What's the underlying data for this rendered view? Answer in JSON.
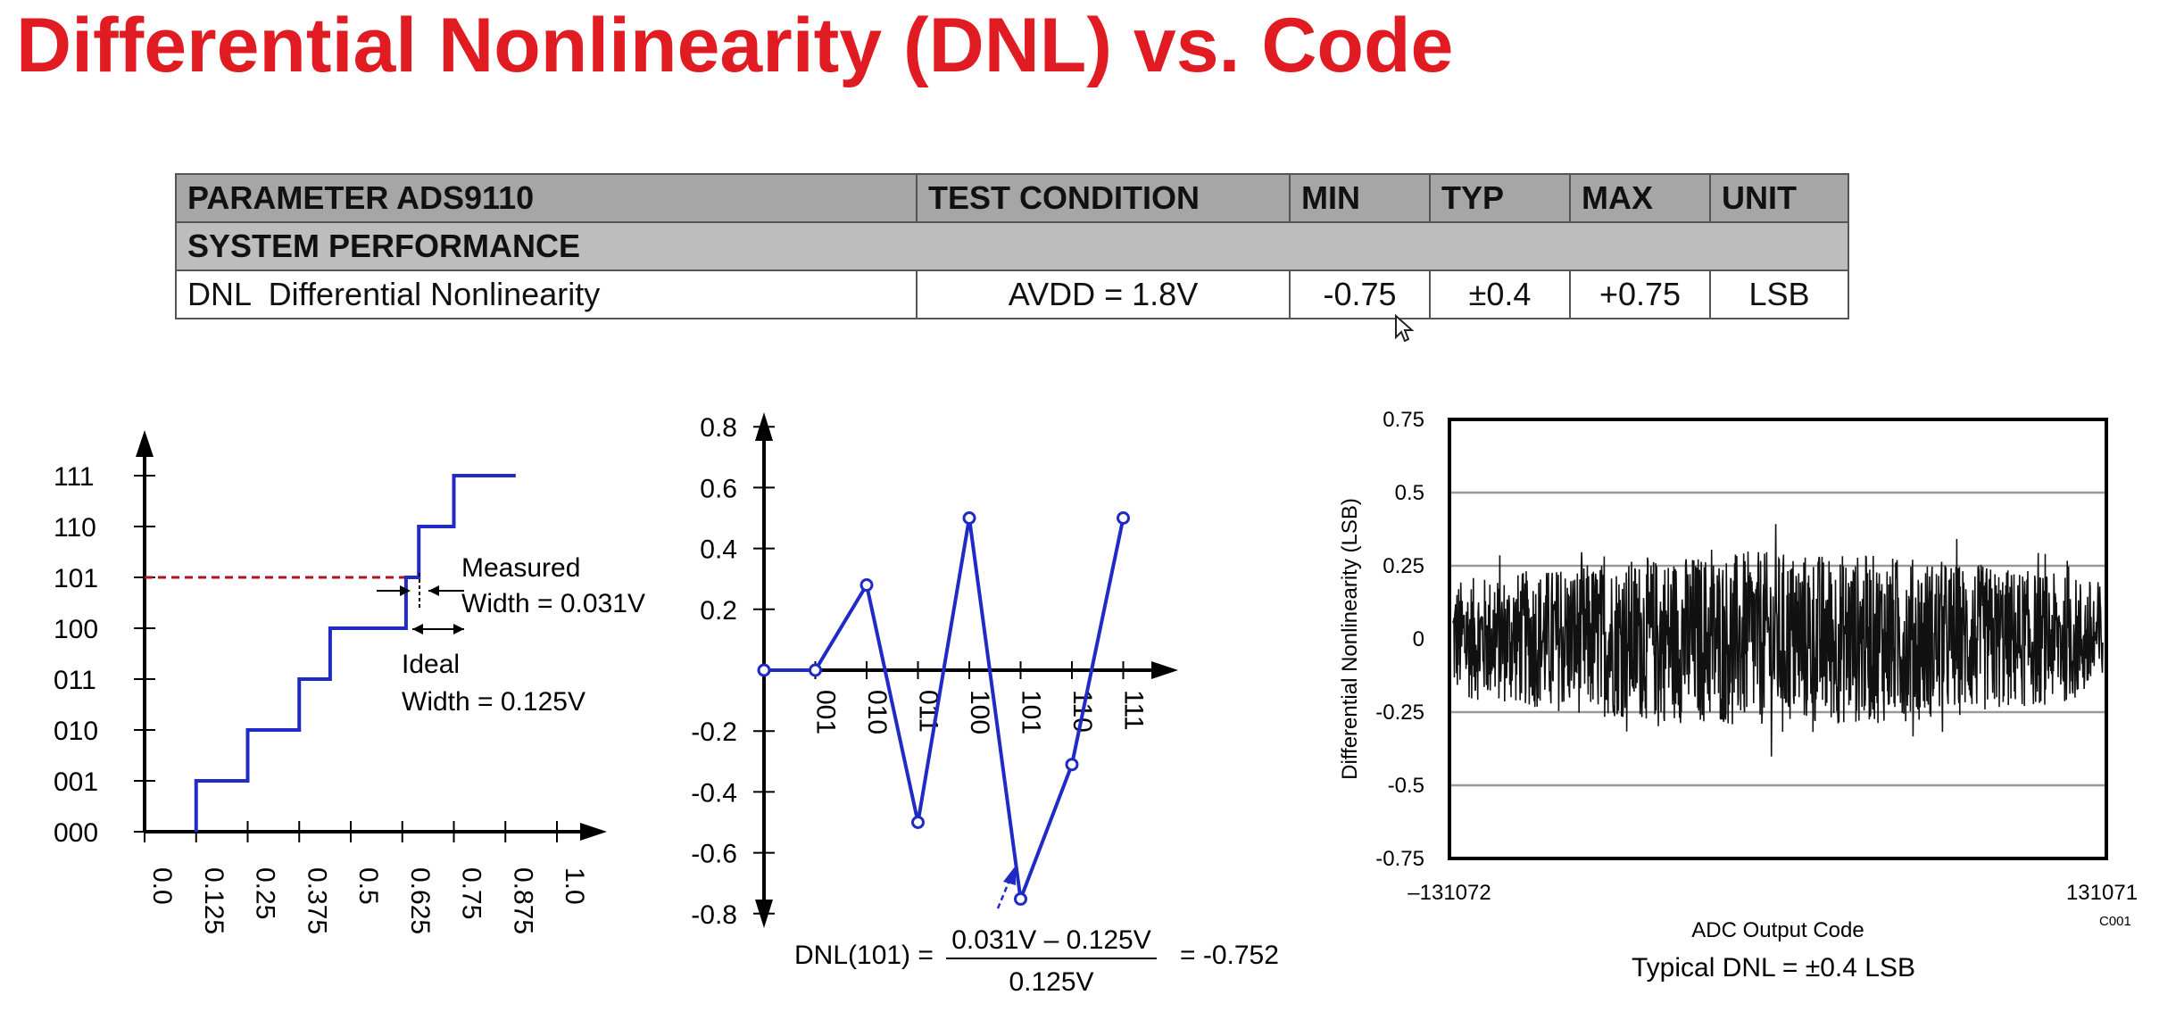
{
  "title": "Differential Nonlinearity (DNL) vs. Code",
  "table": {
    "headers": [
      "PARAMETER ADS9110",
      "TEST CONDITION",
      "MIN",
      "TYP",
      "MAX",
      "UNIT"
    ],
    "section": "SYSTEM PERFORMANCE",
    "row": {
      "parameter": "DNL  Differential Nonlinearity",
      "condition": "AVDD = 1.8V",
      "min": "-0.75",
      "typ": "±0.4",
      "max": "+0.75",
      "unit": "LSB"
    }
  },
  "colors": {
    "title": "#e01b22",
    "series": "#1f2bc4",
    "ref_line": "#b0141a",
    "noise": "#111111"
  },
  "chart_data": [
    {
      "type": "line",
      "title": "",
      "xlabel": "",
      "ylabel": "",
      "x_ticks": [
        "0.0",
        "0.125",
        "0.25",
        "0.375",
        "0.5",
        "0.625",
        "0.75",
        "0.875",
        "1.0"
      ],
      "y_ticks": [
        "000",
        "001",
        "010",
        "011",
        "100",
        "101",
        "110",
        "111"
      ],
      "xlim": [
        0,
        1.0
      ],
      "ylim": [
        0,
        7
      ],
      "series": [
        {
          "x": [
            0.125,
            0.125,
            0.25,
            0.25,
            0.375,
            0.375,
            0.45,
            0.45,
            0.634,
            0.634,
            0.665,
            0.665,
            0.75,
            0.75,
            0.9
          ],
          "y": [
            0,
            1,
            1,
            2,
            2,
            3,
            3,
            4,
            4,
            5,
            5,
            6,
            6,
            7,
            7
          ]
        }
      ],
      "reference_line": {
        "y": 5,
        "x_end": 0.634
      },
      "annotations": {
        "measured_line1": "Measured",
        "measured_line2": "Width = 0.031V",
        "ideal_line1": "Ideal",
        "ideal_line2": "Width = 0.125V"
      }
    },
    {
      "type": "line",
      "title": "",
      "xlabel": "",
      "ylabel": "",
      "y_ticks": [
        "0.8",
        "0.6",
        "0.4",
        "0.2",
        "-0.2",
        "-0.4",
        "-0.6",
        "-0.8"
      ],
      "x_ticks": [
        "001",
        "010",
        "011",
        "100",
        "101",
        "110",
        "111"
      ],
      "ylim": [
        -0.9,
        0.9
      ],
      "series": [
        {
          "x": [
            0,
            1,
            2,
            3,
            4,
            5,
            6,
            7
          ],
          "y": [
            0,
            0,
            0.28,
            -0.5,
            0.5,
            -0.752,
            -0.31,
            0.5
          ]
        }
      ],
      "formula": {
        "left": "DNL(101) =",
        "numerator": "0.031V – 0.125V",
        "denominator": "0.125V",
        "result": "= -0.752"
      }
    },
    {
      "type": "line",
      "title": "",
      "xlabel": "ADC Output Code",
      "ylabel": "Differential Nonlinearity (LSB)",
      "xlim": [
        -131072,
        131071
      ],
      "ylim": [
        -0.75,
        0.75
      ],
      "y_ticks": [
        "0.75",
        "0.5",
        "0.25",
        "0",
        "-0.25",
        "-0.5",
        "-0.75"
      ],
      "x_ticks": [
        "–131072",
        "131071"
      ],
      "grid": true,
      "series": [
        {
          "description": "dense noise band",
          "envelope_center": 0.3,
          "envelope_edge": 0.2
        }
      ],
      "code_label": "C001",
      "caption": "Typical DNL = ±0.4 LSB"
    }
  ]
}
